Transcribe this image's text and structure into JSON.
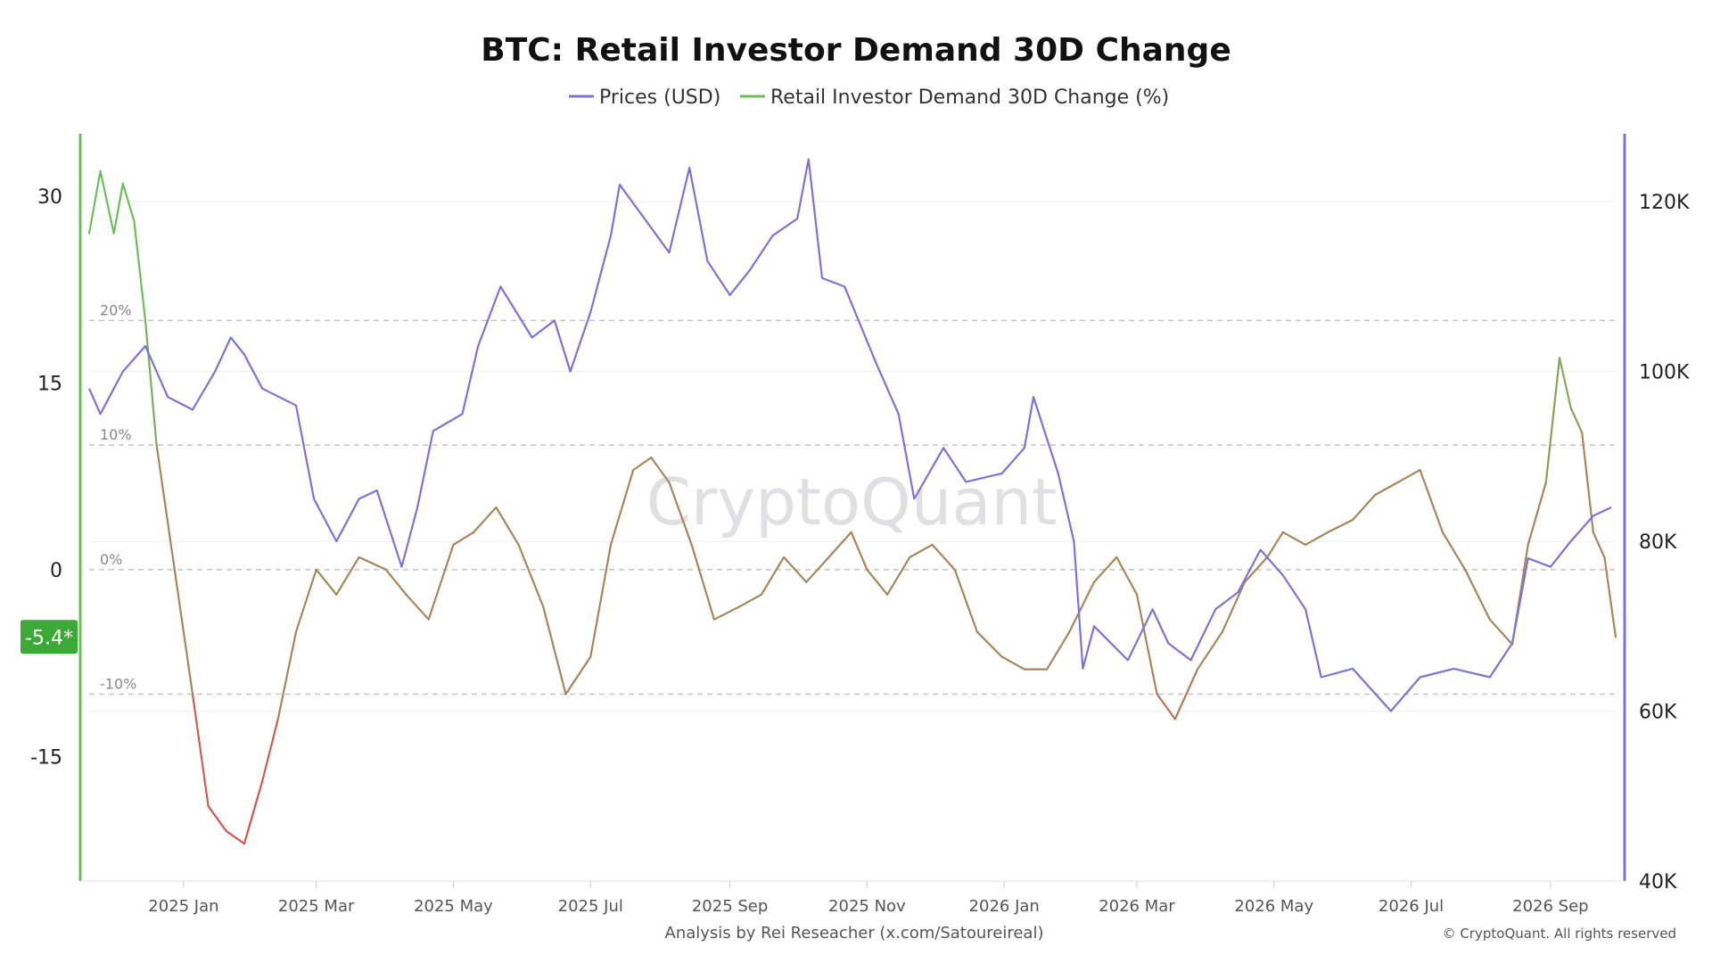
{
  "chart_data": {
    "type": "line",
    "title": "BTC: Retail Investor Demand 30D Change",
    "legend": [
      "Prices (USD)",
      "Retail Investor Demand 30D Change (%)"
    ],
    "legend_placement": "top-center",
    "x_ticks": [
      "2025 Jan",
      "2025 Mar",
      "2025 May",
      "2025 Jul",
      "2025 Sep",
      "2025 Nov",
      "2026 Jan",
      "2026 Mar",
      "2026 May",
      "2026 Jul",
      "2026 Sep"
    ],
    "x_range": [
      "2024-11-20",
      "2026-09-30"
    ],
    "y_left": {
      "ticks": [
        "30",
        "15",
        "0",
        "-15"
      ],
      "range": [
        -25,
        35
      ]
    },
    "y_right": {
      "ticks": [
        "120K",
        "100K",
        "80K",
        "60K",
        "40K"
      ],
      "range": [
        40000,
        128000
      ]
    },
    "reference_lines": [
      {
        "label": "20%",
        "value": 20
      },
      {
        "label": "10%",
        "value": 10
      },
      {
        "label": "0%",
        "value": 0
      },
      {
        "label": "-10%",
        "value": -10
      }
    ],
    "current_value_badge": "-5.4*",
    "grid": true,
    "series": [
      {
        "name": "Prices (USD)",
        "axis": "right",
        "color": "#7b73dc",
        "points": [
          [
            "2024-11-20",
            98000
          ],
          [
            "2024-11-25",
            95000
          ],
          [
            "2024-12-05",
            100000
          ],
          [
            "2024-12-15",
            103000
          ],
          [
            "2024-12-25",
            97000
          ],
          [
            "2025-01-05",
            95500
          ],
          [
            "2025-01-15",
            100000
          ],
          [
            "2025-01-22",
            104000
          ],
          [
            "2025-01-28",
            102000
          ],
          [
            "2025-02-05",
            98000
          ],
          [
            "2025-02-20",
            96000
          ],
          [
            "2025-02-28",
            85000
          ],
          [
            "2025-03-10",
            80000
          ],
          [
            "2025-03-20",
            85000
          ],
          [
            "2025-03-28",
            86000
          ],
          [
            "2025-04-08",
            77000
          ],
          [
            "2025-04-15",
            84000
          ],
          [
            "2025-04-22",
            93000
          ],
          [
            "2025-05-05",
            95000
          ],
          [
            "2025-05-12",
            103000
          ],
          [
            "2025-05-22",
            110000
          ],
          [
            "2025-06-05",
            104000
          ],
          [
            "2025-06-15",
            106000
          ],
          [
            "2025-06-22",
            100000
          ],
          [
            "2025-07-01",
            107000
          ],
          [
            "2025-07-10",
            116000
          ],
          [
            "2025-07-14",
            122000
          ],
          [
            "2025-07-25",
            118000
          ],
          [
            "2025-08-05",
            114000
          ],
          [
            "2025-08-14",
            124000
          ],
          [
            "2025-08-22",
            113000
          ],
          [
            "2025-09-01",
            109000
          ],
          [
            "2025-09-10",
            112000
          ],
          [
            "2025-09-20",
            116000
          ],
          [
            "2025-10-01",
            118000
          ],
          [
            "2025-10-06",
            125000
          ],
          [
            "2025-10-12",
            111000
          ],
          [
            "2025-10-22",
            110000
          ],
          [
            "2025-11-05",
            101000
          ],
          [
            "2025-11-15",
            95000
          ],
          [
            "2025-11-22",
            85000
          ],
          [
            "2025-12-05",
            91000
          ],
          [
            "2025-12-15",
            87000
          ],
          [
            "2025-12-31",
            88000
          ],
          [
            "2026-01-10",
            91000
          ],
          [
            "2026-01-14",
            97000
          ],
          [
            "2026-01-25",
            88000
          ],
          [
            "2026-02-01",
            80000
          ],
          [
            "2026-02-05",
            65000
          ],
          [
            "2026-02-10",
            70000
          ],
          [
            "2026-02-25",
            66000
          ],
          [
            "2026-03-08",
            72000
          ],
          [
            "2026-03-15",
            68000
          ],
          [
            "2026-03-25",
            66000
          ],
          [
            "2026-04-05",
            72000
          ],
          [
            "2026-04-15",
            74000
          ],
          [
            "2026-04-25",
            79000
          ],
          [
            "2026-05-05",
            76000
          ],
          [
            "2026-05-15",
            72000
          ],
          [
            "2026-05-22",
            64000
          ],
          [
            "2026-06-05",
            65000
          ],
          [
            "2026-06-22",
            60000
          ],
          [
            "2026-07-05",
            64000
          ],
          [
            "2026-07-20",
            65000
          ],
          [
            "2026-08-05",
            64000
          ],
          [
            "2026-08-15",
            68000
          ],
          [
            "2026-08-22",
            78000
          ],
          [
            "2026-09-01",
            77000
          ],
          [
            "2026-09-10",
            80000
          ],
          [
            "2026-09-20",
            83000
          ],
          [
            "2026-09-28",
            84000
          ]
        ]
      },
      {
        "name": "Retail Investor Demand 30D Change (%)",
        "axis": "left",
        "color_scale": {
          "high": "#6abf59",
          "mid": "#a8865a",
          "low": "#d9534f"
        },
        "points": [
          [
            "2024-11-20",
            27
          ],
          [
            "2024-11-25",
            32
          ],
          [
            "2024-12-01",
            27
          ],
          [
            "2024-12-05",
            31
          ],
          [
            "2024-12-10",
            28
          ],
          [
            "2024-12-15",
            20
          ],
          [
            "2024-12-20",
            10
          ],
          [
            "2024-12-28",
            0
          ],
          [
            "2025-01-05",
            -10
          ],
          [
            "2025-01-12",
            -19
          ],
          [
            "2025-01-20",
            -21
          ],
          [
            "2025-01-28",
            -22
          ],
          [
            "2025-02-05",
            -17
          ],
          [
            "2025-02-12",
            -12
          ],
          [
            "2025-02-20",
            -5
          ],
          [
            "2025-03-01",
            0
          ],
          [
            "2025-03-10",
            -2
          ],
          [
            "2025-03-20",
            1
          ],
          [
            "2025-04-01",
            0
          ],
          [
            "2025-04-10",
            -2
          ],
          [
            "2025-04-20",
            -4
          ],
          [
            "2025-05-01",
            2
          ],
          [
            "2025-05-10",
            3
          ],
          [
            "2025-05-20",
            5
          ],
          [
            "2025-05-30",
            2
          ],
          [
            "2025-06-10",
            -3
          ],
          [
            "2025-06-20",
            -10
          ],
          [
            "2025-07-01",
            -7
          ],
          [
            "2025-07-10",
            2
          ],
          [
            "2025-07-20",
            8
          ],
          [
            "2025-07-28",
            9
          ],
          [
            "2025-08-05",
            7
          ],
          [
            "2025-08-15",
            2
          ],
          [
            "2025-08-25",
            -4
          ],
          [
            "2025-09-05",
            -3
          ],
          [
            "2025-09-15",
            -2
          ],
          [
            "2025-09-25",
            1
          ],
          [
            "2025-10-05",
            -1
          ],
          [
            "2025-10-15",
            1
          ],
          [
            "2025-10-25",
            3
          ],
          [
            "2025-11-01",
            0
          ],
          [
            "2025-11-10",
            -2
          ],
          [
            "2025-11-20",
            1
          ],
          [
            "2025-11-30",
            2
          ],
          [
            "2025-12-10",
            0
          ],
          [
            "2025-12-20",
            -5
          ],
          [
            "2025-12-31",
            -7
          ],
          [
            "2026-01-10",
            -8
          ],
          [
            "2026-01-20",
            -8
          ],
          [
            "2026-01-30",
            -5
          ],
          [
            "2026-02-10",
            -1
          ],
          [
            "2026-02-20",
            1
          ],
          [
            "2026-03-01",
            -2
          ],
          [
            "2026-03-10",
            -10
          ],
          [
            "2026-03-18",
            -12
          ],
          [
            "2026-03-28",
            -8
          ],
          [
            "2026-04-08",
            -5
          ],
          [
            "2026-04-18",
            -1
          ],
          [
            "2026-04-28",
            1
          ],
          [
            "2026-05-05",
            3
          ],
          [
            "2026-05-15",
            2
          ],
          [
            "2026-05-25",
            3
          ],
          [
            "2026-06-05",
            4
          ],
          [
            "2026-06-15",
            6
          ],
          [
            "2026-06-25",
            7
          ],
          [
            "2026-07-05",
            8
          ],
          [
            "2026-07-15",
            3
          ],
          [
            "2026-07-25",
            0
          ],
          [
            "2026-08-05",
            -4
          ],
          [
            "2026-08-15",
            -6
          ],
          [
            "2026-08-22",
            2
          ],
          [
            "2026-08-30",
            7
          ],
          [
            "2026-09-05",
            17
          ],
          [
            "2026-09-10",
            13
          ],
          [
            "2026-09-15",
            11
          ],
          [
            "2026-09-20",
            3
          ],
          [
            "2026-09-25",
            1
          ],
          [
            "2026-09-30",
            -5.4
          ]
        ]
      }
    ]
  },
  "watermark": "CryptoQuant",
  "footer": "Analysis by Rei Reseacher (x.com/Satoureireal)",
  "copyright": "© CryptoQuant. All rights reserved",
  "colors": {
    "price": "#7b73dc",
    "left_axis": "#6abf59",
    "badge": "#3aa935",
    "grid": "#cccccc"
  }
}
